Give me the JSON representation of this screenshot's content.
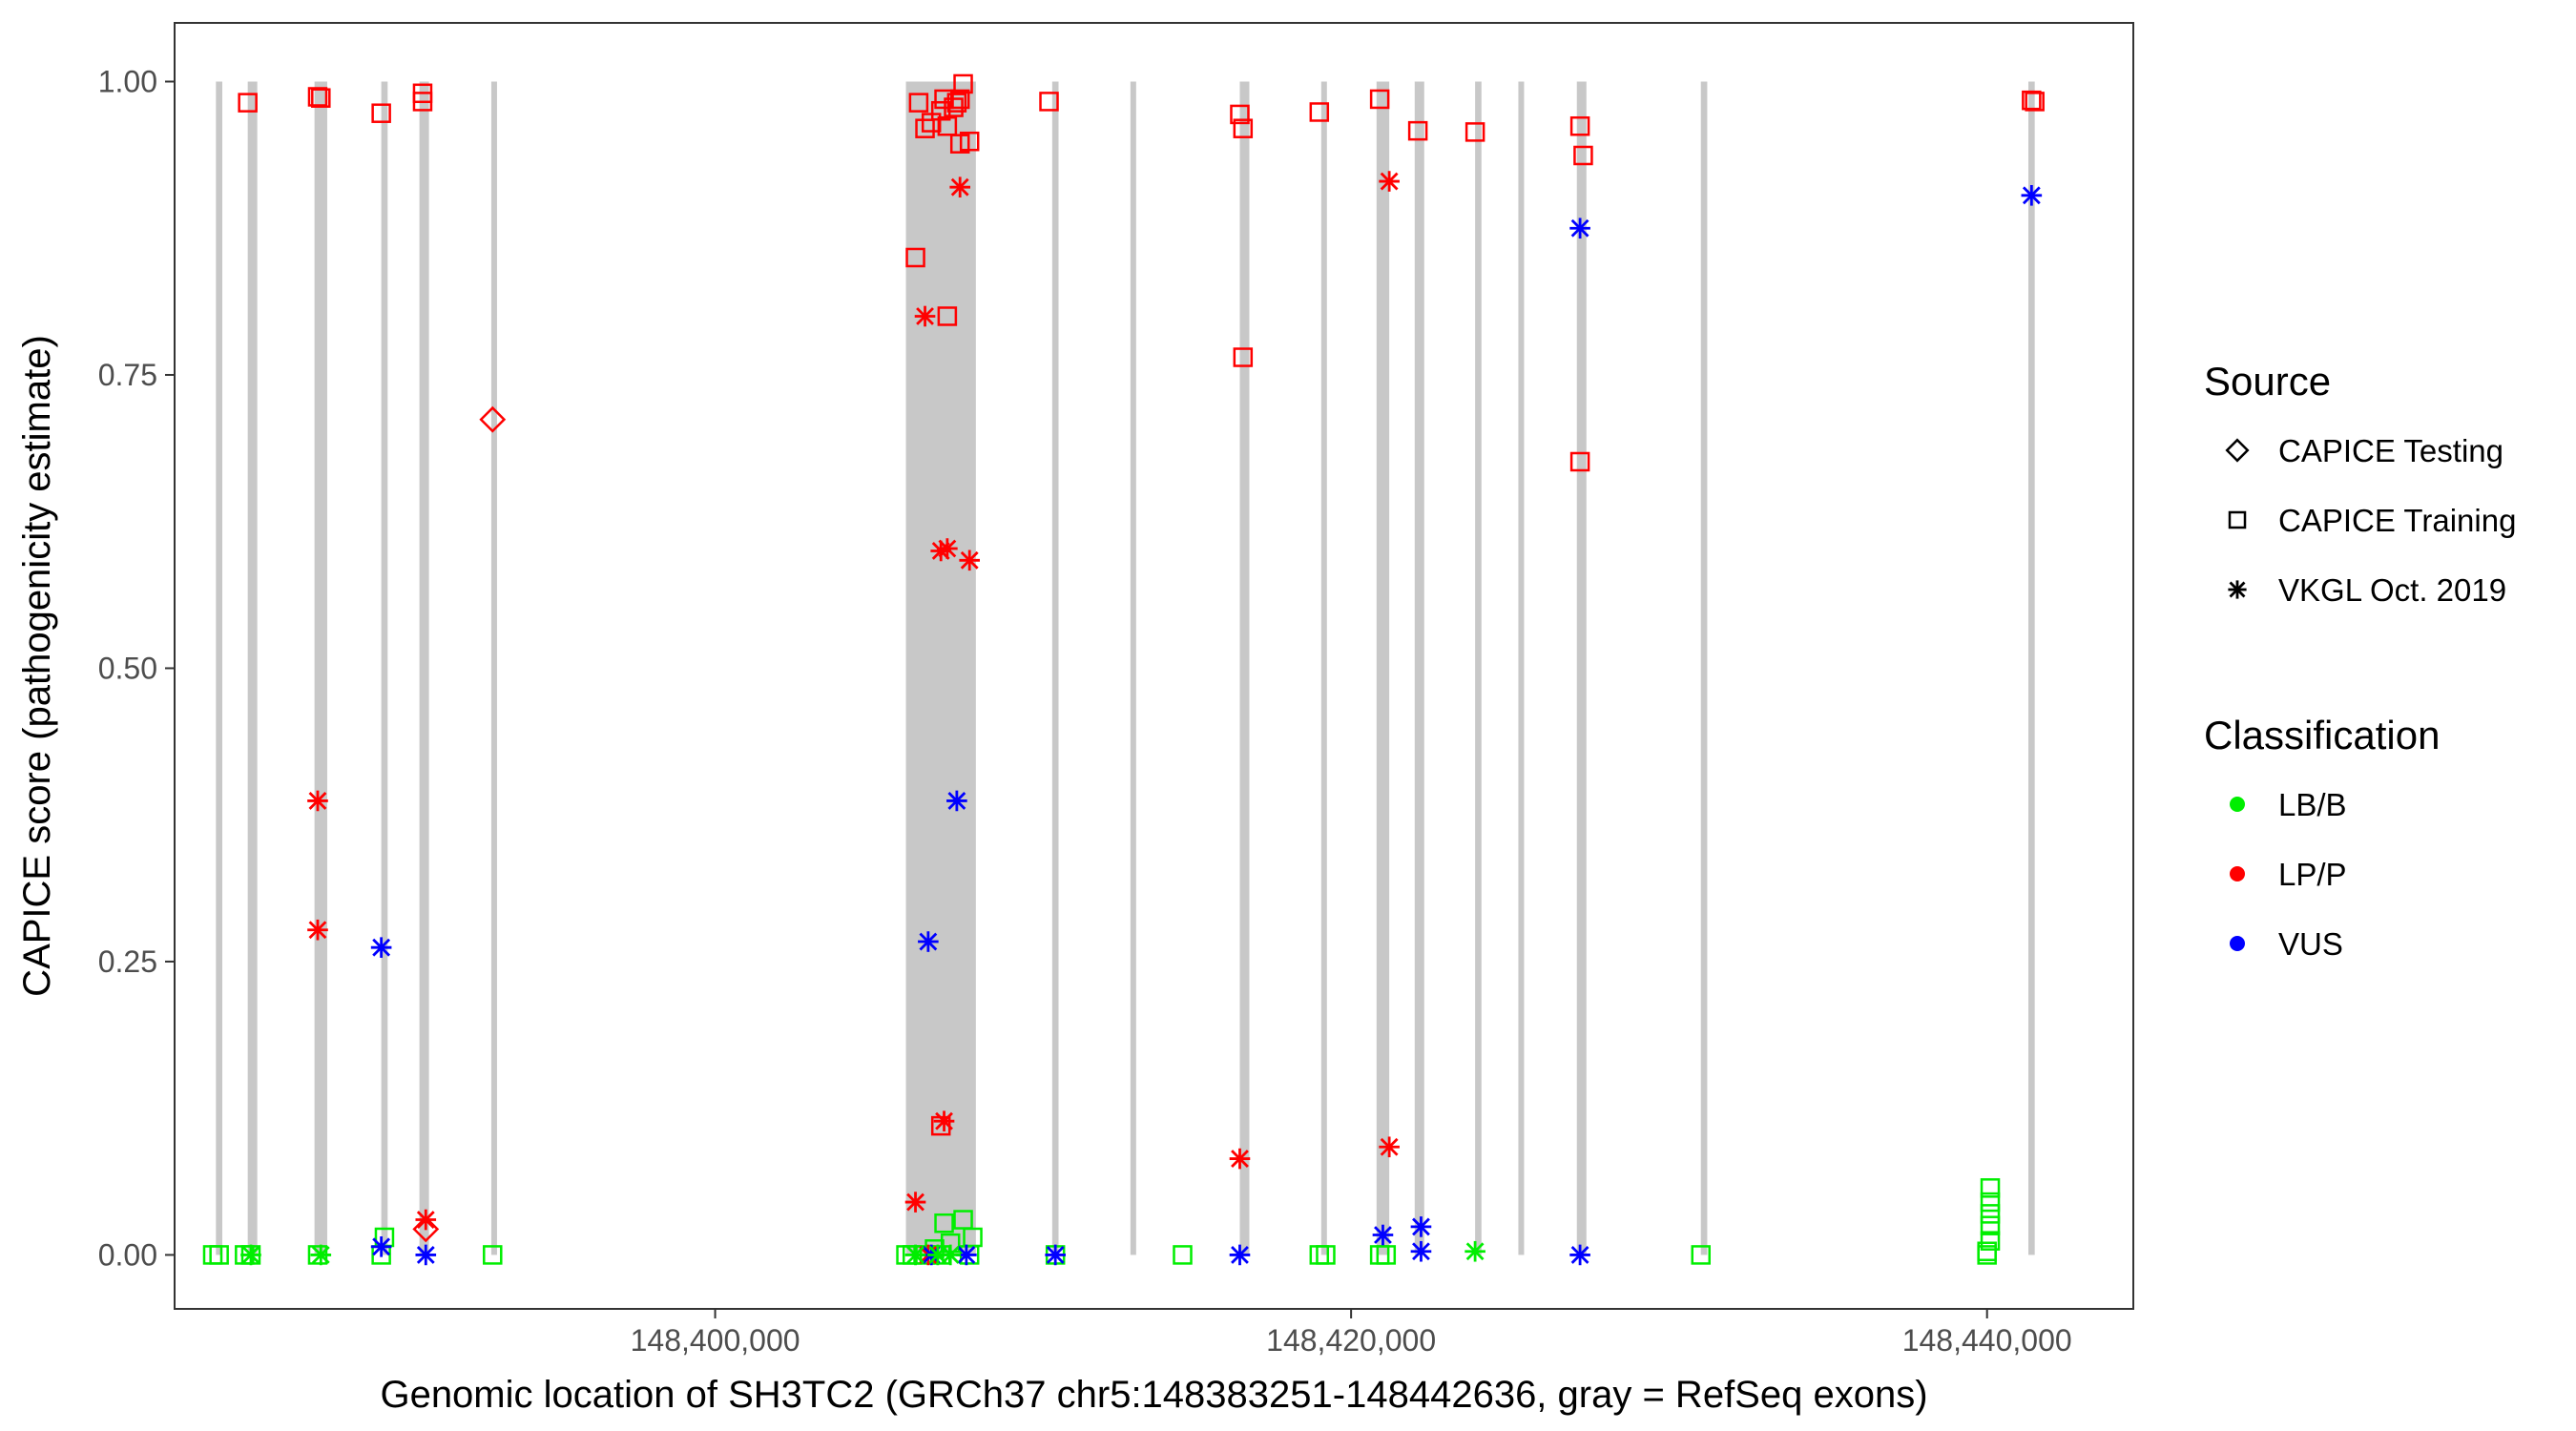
{
  "chart_data": {
    "type": "scatter",
    "title": "",
    "xlabel": "Genomic location of SH3TC2 (GRCh37 chr5:148383251-148442636, gray = RefSeq exons)",
    "ylabel": "CAPICE score (pathogenicity estimate)",
    "xlim": [
      148383000,
      148444600
    ],
    "ylim": [
      -0.046,
      1.05
    ],
    "x_ticks": [
      148400000,
      148420000,
      148440000
    ],
    "x_tick_labels": [
      "148,400,000",
      "148,420,000",
      "148,440,000"
    ],
    "y_ticks": [
      0,
      0.25,
      0.5,
      0.75,
      1.0
    ],
    "y_tick_labels": [
      "0.00",
      "0.25",
      "0.50",
      "0.75",
      "1.00"
    ],
    "grid": false,
    "legend_position": "right",
    "exon_color": "#c8c8c8",
    "exons": [
      [
        148384300,
        148384500
      ],
      [
        148385300,
        148385600
      ],
      [
        148387400,
        148387800
      ],
      [
        148389500,
        148389700
      ],
      [
        148390700,
        148391000
      ],
      [
        148393000,
        148393100
      ],
      [
        148406000,
        148408200
      ],
      [
        148410600,
        148410800
      ],
      [
        148413100,
        148413200
      ],
      [
        148416500,
        148416800
      ],
      [
        148419100,
        148419200
      ],
      [
        148420800,
        148421200
      ],
      [
        148422000,
        148422300
      ],
      [
        148423900,
        148424100
      ],
      [
        148425300,
        148425400
      ],
      [
        148427100,
        148427400
      ],
      [
        148431000,
        148431200
      ],
      [
        148441300,
        148441500
      ]
    ],
    "legends": [
      {
        "title": "Source",
        "items": [
          {
            "label": "CAPICE Testing",
            "shape": "diamond"
          },
          {
            "label": "CAPICE Training",
            "shape": "square"
          },
          {
            "label": "VKGL Oct. 2019",
            "shape": "asterisk"
          }
        ]
      },
      {
        "title": "Classification",
        "items": [
          {
            "label": "LB/B",
            "color": "#00ee00"
          },
          {
            "label": "LP/P",
            "color": "#ff0000"
          },
          {
            "label": "VUS",
            "color": "#0000ff"
          }
        ]
      }
    ],
    "series": [
      {
        "source": "CAPICE Testing",
        "classification": "LP/P",
        "points": [
          [
            148393000,
            0.712
          ],
          [
            148390900,
            0.022
          ]
        ]
      },
      {
        "source": "CAPICE Training",
        "classification": "LP/P",
        "points": [
          [
            148385300,
            0.982
          ],
          [
            148387500,
            0.987
          ],
          [
            148387600,
            0.986
          ],
          [
            148389500,
            0.973
          ],
          [
            148390800,
            0.983
          ],
          [
            148390800,
            0.99
          ],
          [
            148406400,
            0.982
          ],
          [
            148406600,
            0.96
          ],
          [
            148406800,
            0.965
          ],
          [
            148407100,
            0.975
          ],
          [
            148407200,
            0.985
          ],
          [
            148407300,
            0.962
          ],
          [
            148407500,
            0.978
          ],
          [
            148407600,
            0.982
          ],
          [
            148407700,
            0.985
          ],
          [
            148407800,
            0.998
          ],
          [
            148407700,
            0.947
          ],
          [
            148408000,
            0.949
          ],
          [
            148406300,
            0.85
          ],
          [
            148407300,
            0.8
          ],
          [
            148410500,
            0.983
          ],
          [
            148416500,
            0.972
          ],
          [
            148416600,
            0.96
          ],
          [
            148419000,
            0.974
          ],
          [
            148420900,
            0.985
          ],
          [
            148422100,
            0.958
          ],
          [
            148423900,
            0.957
          ],
          [
            148427200,
            0.962
          ],
          [
            148427300,
            0.937
          ],
          [
            148416600,
            0.765
          ],
          [
            148427200,
            0.676
          ],
          [
            148407100,
            0.11
          ],
          [
            148441400,
            0.984
          ],
          [
            148441500,
            0.983
          ]
        ]
      },
      {
        "source": "CAPICE Training",
        "classification": "LB/B",
        "points": [
          [
            148384200,
            0.0
          ],
          [
            148384400,
            0.0
          ],
          [
            148385200,
            0.0
          ],
          [
            148385400,
            0.0
          ],
          [
            148387500,
            0.0
          ],
          [
            148389500,
            0.0
          ],
          [
            148389600,
            0.015
          ],
          [
            148393000,
            0.0
          ],
          [
            148406000,
            0.0
          ],
          [
            148406200,
            0.0
          ],
          [
            148406600,
            0.0
          ],
          [
            148406900,
            0.005
          ],
          [
            148407100,
            0.0
          ],
          [
            148407200,
            0.027
          ],
          [
            148407400,
            0.01
          ],
          [
            148407800,
            0.03
          ],
          [
            148408000,
            0.0
          ],
          [
            148408100,
            0.015
          ],
          [
            148410700,
            0.0
          ],
          [
            148414700,
            0.0
          ],
          [
            148419000,
            0.0
          ],
          [
            148419200,
            0.0
          ],
          [
            148420900,
            0.0
          ],
          [
            148421100,
            0.0
          ],
          [
            148431000,
            0.0
          ],
          [
            148440000,
            0.0
          ],
          [
            148440100,
            0.012
          ],
          [
            148440100,
            0.025
          ],
          [
            148440100,
            0.035
          ],
          [
            148440100,
            0.045
          ],
          [
            148440100,
            0.057
          ],
          [
            148440000,
            0.003
          ]
        ]
      },
      {
        "source": "VKGL Oct. 2019",
        "classification": "LP/P",
        "points": [
          [
            148387500,
            0.387
          ],
          [
            148387500,
            0.277
          ],
          [
            148390900,
            0.03
          ],
          [
            148406300,
            0.045
          ],
          [
            148406600,
            0.8
          ],
          [
            148407100,
            0.6
          ],
          [
            148407300,
            0.602
          ],
          [
            148407200,
            0.114
          ],
          [
            148407700,
            0.91
          ],
          [
            148408000,
            0.592
          ],
          [
            148416500,
            0.082
          ],
          [
            148421200,
            0.915
          ],
          [
            148421200,
            0.092
          ],
          [
            148406700,
            0.0
          ]
        ]
      },
      {
        "source": "VKGL Oct. 2019",
        "classification": "VUS",
        "points": [
          [
            148389500,
            0.262
          ],
          [
            148389500,
            0.007
          ],
          [
            148390900,
            0.0
          ],
          [
            148406700,
            0.267
          ],
          [
            148407600,
            0.387
          ],
          [
            148406800,
            0.0
          ],
          [
            148407900,
            0.0
          ],
          [
            148410700,
            0.0
          ],
          [
            148416500,
            0.0
          ],
          [
            148421000,
            0.017
          ],
          [
            148422200,
            0.024
          ],
          [
            148422200,
            0.003
          ],
          [
            148427200,
            0.875
          ],
          [
            148427200,
            0.0
          ],
          [
            148441400,
            0.903
          ]
        ]
      },
      {
        "source": "VKGL Oct. 2019",
        "classification": "LB/B",
        "points": [
          [
            148385400,
            0.0
          ],
          [
            148387600,
            0.0
          ],
          [
            148406300,
            0.0
          ],
          [
            148407000,
            0.0
          ],
          [
            148407400,
            0.0
          ],
          [
            148423900,
            0.003
          ]
        ]
      }
    ]
  }
}
